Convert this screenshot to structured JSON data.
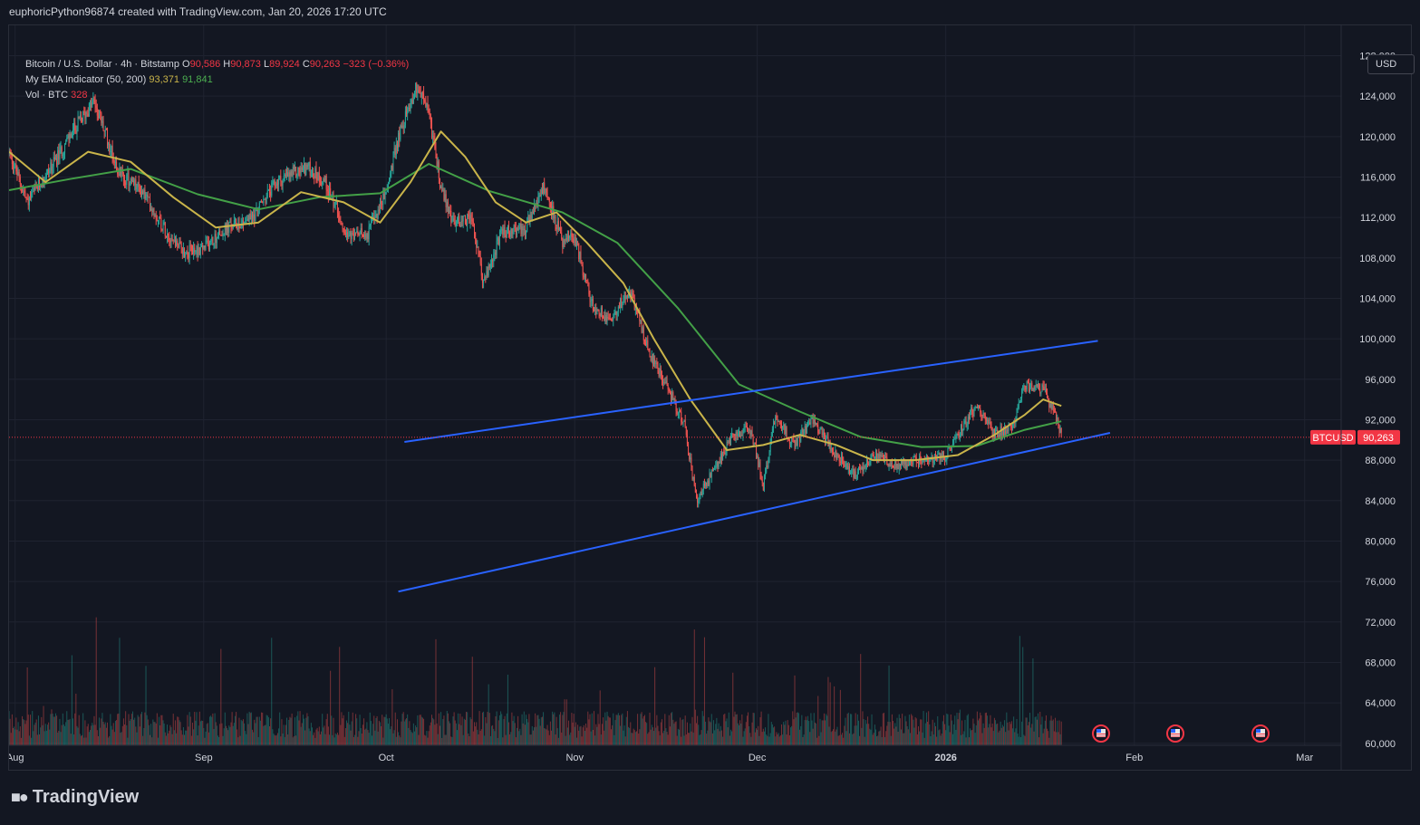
{
  "caption": "euphoricPython96874 created with TradingView.com, Jan 20, 2026 17:20 UTC",
  "legend": {
    "title": "Bitcoin / U.S. Dollar · 4h · Bitstamp",
    "o_label": "O",
    "o": "90,586",
    "h_label": "H",
    "h": "90,873",
    "l_label": "L",
    "l": "89,924",
    "c_label": "C",
    "c": "90,263",
    "change": "−323 (−0.36%)",
    "ema_label": "My EMA Indicator (50, 200)",
    "ema50": "93,371",
    "ema200": "91,841",
    "vol_label": "Vol · BTC",
    "vol": "328"
  },
  "currency": "USD",
  "symbol_tag": "BTCUSD",
  "price_tag": "90,263",
  "branding": "TradingView",
  "colors": {
    "background": "#131722",
    "grid": "#1f2330",
    "up": "#26a69a",
    "down": "#ef5350",
    "ema50": "#c9b44a",
    "ema200": "#43a047",
    "trendline": "#2962ff",
    "price_line": "#f23645"
  },
  "chart_data": {
    "type": "candlestick",
    "y_axis": {
      "ticks": [
        128000,
        124000,
        120000,
        116000,
        112000,
        108000,
        104000,
        100000,
        96000,
        92000,
        88000,
        84000,
        80000,
        76000,
        72000,
        68000,
        64000,
        60000
      ],
      "tick_labels": [
        "128,000",
        "124,000",
        "120,000",
        "116,000",
        "112,000",
        "108,000",
        "104,000",
        "100,000",
        "96,000",
        "92,000",
        "88,000",
        "84,000",
        "80,000",
        "76,000",
        "72,000",
        "68,000",
        "64,000",
        "60,000"
      ],
      "range": [
        59800,
        131000
      ]
    },
    "x_axis": {
      "labels": [
        "Aug",
        "Sep",
        "Oct",
        "Nov",
        "Dec",
        "2026",
        "Feb",
        "Mar"
      ],
      "dates": [
        "2025-08-01",
        "2025-09-01",
        "2025-10-01",
        "2025-11-01",
        "2025-12-01",
        "2026-01-01",
        "2026-02-01",
        "2026-03-01"
      ],
      "range": [
        "2025-07-31",
        "2026-03-07"
      ]
    },
    "price_series": [
      [
        "2025-07-31",
        118500
      ],
      [
        "2025-08-03",
        113500
      ],
      [
        "2025-08-07",
        117000
      ],
      [
        "2025-08-11",
        121000
      ],
      [
        "2025-08-14",
        123500
      ],
      [
        "2025-08-18",
        116500
      ],
      [
        "2025-08-22",
        114500
      ],
      [
        "2025-08-26",
        110500
      ],
      [
        "2025-08-29",
        108500
      ],
      [
        "2025-09-01",
        109000
      ],
      [
        "2025-09-05",
        111000
      ],
      [
        "2025-09-09",
        112000
      ],
      [
        "2025-09-13",
        115500
      ],
      [
        "2025-09-18",
        117000
      ],
      [
        "2025-09-21",
        115500
      ],
      [
        "2025-09-25",
        110000
      ],
      [
        "2025-09-28",
        110500
      ],
      [
        "2025-10-01",
        114500
      ],
      [
        "2025-10-03",
        120000
      ],
      [
        "2025-10-06",
        125000
      ],
      [
        "2025-10-08",
        122500
      ],
      [
        "2025-10-10",
        115000
      ],
      [
        "2025-10-12",
        111500
      ],
      [
        "2025-10-15",
        112000
      ],
      [
        "2025-10-17",
        105500
      ],
      [
        "2025-10-20",
        110500
      ],
      [
        "2025-10-24",
        111000
      ],
      [
        "2025-10-27",
        115000
      ],
      [
        "2025-10-30",
        109500
      ],
      [
        "2025-11-01",
        110000
      ],
      [
        "2025-11-04",
        103000
      ],
      [
        "2025-11-07",
        102000
      ],
      [
        "2025-11-10",
        105000
      ],
      [
        "2025-11-13",
        99000
      ],
      [
        "2025-11-16",
        95500
      ],
      [
        "2025-11-19",
        91500
      ],
      [
        "2025-11-21",
        84000
      ],
      [
        "2025-11-23",
        86000
      ],
      [
        "2025-11-27",
        90500
      ],
      [
        "2025-11-30",
        91000
      ],
      [
        "2025-12-02",
        85500
      ],
      [
        "2025-12-04",
        92500
      ],
      [
        "2025-12-07",
        89500
      ],
      [
        "2025-12-10",
        92000
      ],
      [
        "2025-12-14",
        88500
      ],
      [
        "2025-12-17",
        86500
      ],
      [
        "2025-12-20",
        88500
      ],
      [
        "2025-12-24",
        87500
      ],
      [
        "2025-12-28",
        88000
      ],
      [
        "2026-01-01",
        88500
      ],
      [
        "2026-01-04",
        91500
      ],
      [
        "2026-01-06",
        93500
      ],
      [
        "2026-01-09",
        90500
      ],
      [
        "2026-01-12",
        91500
      ],
      [
        "2026-01-14",
        95500
      ],
      [
        "2026-01-17",
        95000
      ],
      [
        "2026-01-19",
        92500
      ],
      [
        "2026-01-20",
        90263
      ]
    ],
    "ema50": [
      [
        "2025-07-31",
        118500
      ],
      [
        "2025-08-06",
        115500
      ],
      [
        "2025-08-13",
        118500
      ],
      [
        "2025-08-20",
        117500
      ],
      [
        "2025-08-27",
        114000
      ],
      [
        "2025-09-03",
        111000
      ],
      [
        "2025-09-10",
        111500
      ],
      [
        "2025-09-17",
        114500
      ],
      [
        "2025-09-24",
        113500
      ],
      [
        "2025-09-30",
        111500
      ],
      [
        "2025-10-05",
        115500
      ],
      [
        "2025-10-10",
        120500
      ],
      [
        "2025-10-14",
        118000
      ],
      [
        "2025-10-19",
        113500
      ],
      [
        "2025-10-24",
        111500
      ],
      [
        "2025-10-29",
        112500
      ],
      [
        "2025-11-03",
        109500
      ],
      [
        "2025-11-09",
        105500
      ],
      [
        "2025-11-14",
        100000
      ],
      [
        "2025-11-20",
        94000
      ],
      [
        "2025-11-26",
        89000
      ],
      [
        "2025-12-02",
        89500
      ],
      [
        "2025-12-08",
        90500
      ],
      [
        "2025-12-14",
        89500
      ],
      [
        "2025-12-20",
        88000
      ],
      [
        "2025-12-27",
        88000
      ],
      [
        "2026-01-03",
        88500
      ],
      [
        "2026-01-09",
        90500
      ],
      [
        "2026-01-14",
        92500
      ],
      [
        "2026-01-17",
        94000
      ],
      [
        "2026-01-20",
        93371
      ]
    ],
    "ema200": [
      [
        "2025-07-31",
        114700
      ],
      [
        "2025-08-10",
        115800
      ],
      [
        "2025-08-20",
        116800
      ],
      [
        "2025-08-31",
        114300
      ],
      [
        "2025-09-10",
        112800
      ],
      [
        "2025-09-20",
        114000
      ],
      [
        "2025-09-30",
        114400
      ],
      [
        "2025-10-08",
        117300
      ],
      [
        "2025-10-18",
        114600
      ],
      [
        "2025-10-30",
        112500
      ],
      [
        "2025-11-08",
        109500
      ],
      [
        "2025-11-18",
        103000
      ],
      [
        "2025-11-28",
        95500
      ],
      [
        "2025-12-08",
        92800
      ],
      [
        "2025-12-18",
        90300
      ],
      [
        "2025-12-28",
        89300
      ],
      [
        "2026-01-06",
        89400
      ],
      [
        "2026-01-14",
        91000
      ],
      [
        "2026-01-20",
        91841
      ]
    ],
    "trendlines": [
      [
        [
          "2025-10-04",
          89800
        ],
        [
          "2026-01-26",
          99800
        ]
      ],
      [
        [
          "2025-10-03",
          75000
        ],
        [
          "2026-01-28",
          90700
        ]
      ]
    ],
    "last_price": 90263,
    "volume": {
      "label": "Vol · BTC",
      "last": 328
    }
  }
}
